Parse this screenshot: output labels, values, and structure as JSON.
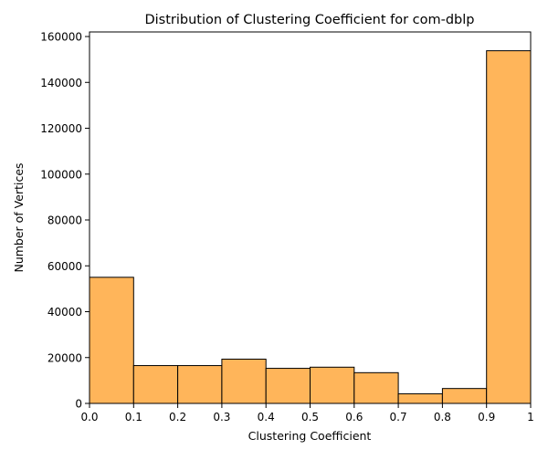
{
  "chart_data": {
    "type": "bar",
    "title": "Distribution of Clustering Coefficient for com-dblp",
    "xlabel": "Clustering Coefficient",
    "ylabel": "Number of Vertices",
    "bin_edges": [
      0.0,
      0.1,
      0.2,
      0.3,
      0.4,
      0.5,
      0.6,
      0.7,
      0.8,
      0.9,
      1.0
    ],
    "values": [
      55000,
      16500,
      16500,
      19300,
      15300,
      15800,
      13400,
      4200,
      6500,
      153800
    ],
    "xlim": [
      0,
      1
    ],
    "ylim": [
      0,
      162000
    ],
    "x_ticks": [
      0.0,
      0.1,
      0.2,
      0.3,
      0.4,
      0.5,
      0.6,
      0.7,
      0.8,
      0.9,
      1.0
    ],
    "x_tick_labels": [
      "0.0",
      "0.1",
      "0.2",
      "0.3",
      "0.4",
      "0.5",
      "0.6",
      "0.7",
      "0.8",
      "0.9",
      "1"
    ],
    "y_ticks": [
      0,
      20000,
      40000,
      60000,
      80000,
      100000,
      120000,
      140000,
      160000
    ],
    "y_tick_labels": [
      "0",
      "20000",
      "40000",
      "60000",
      "80000",
      "100000",
      "120000",
      "140000",
      "160000"
    ],
    "grid": false,
    "bar_color": "#FFB55A",
    "edge_color": "#000000"
  }
}
